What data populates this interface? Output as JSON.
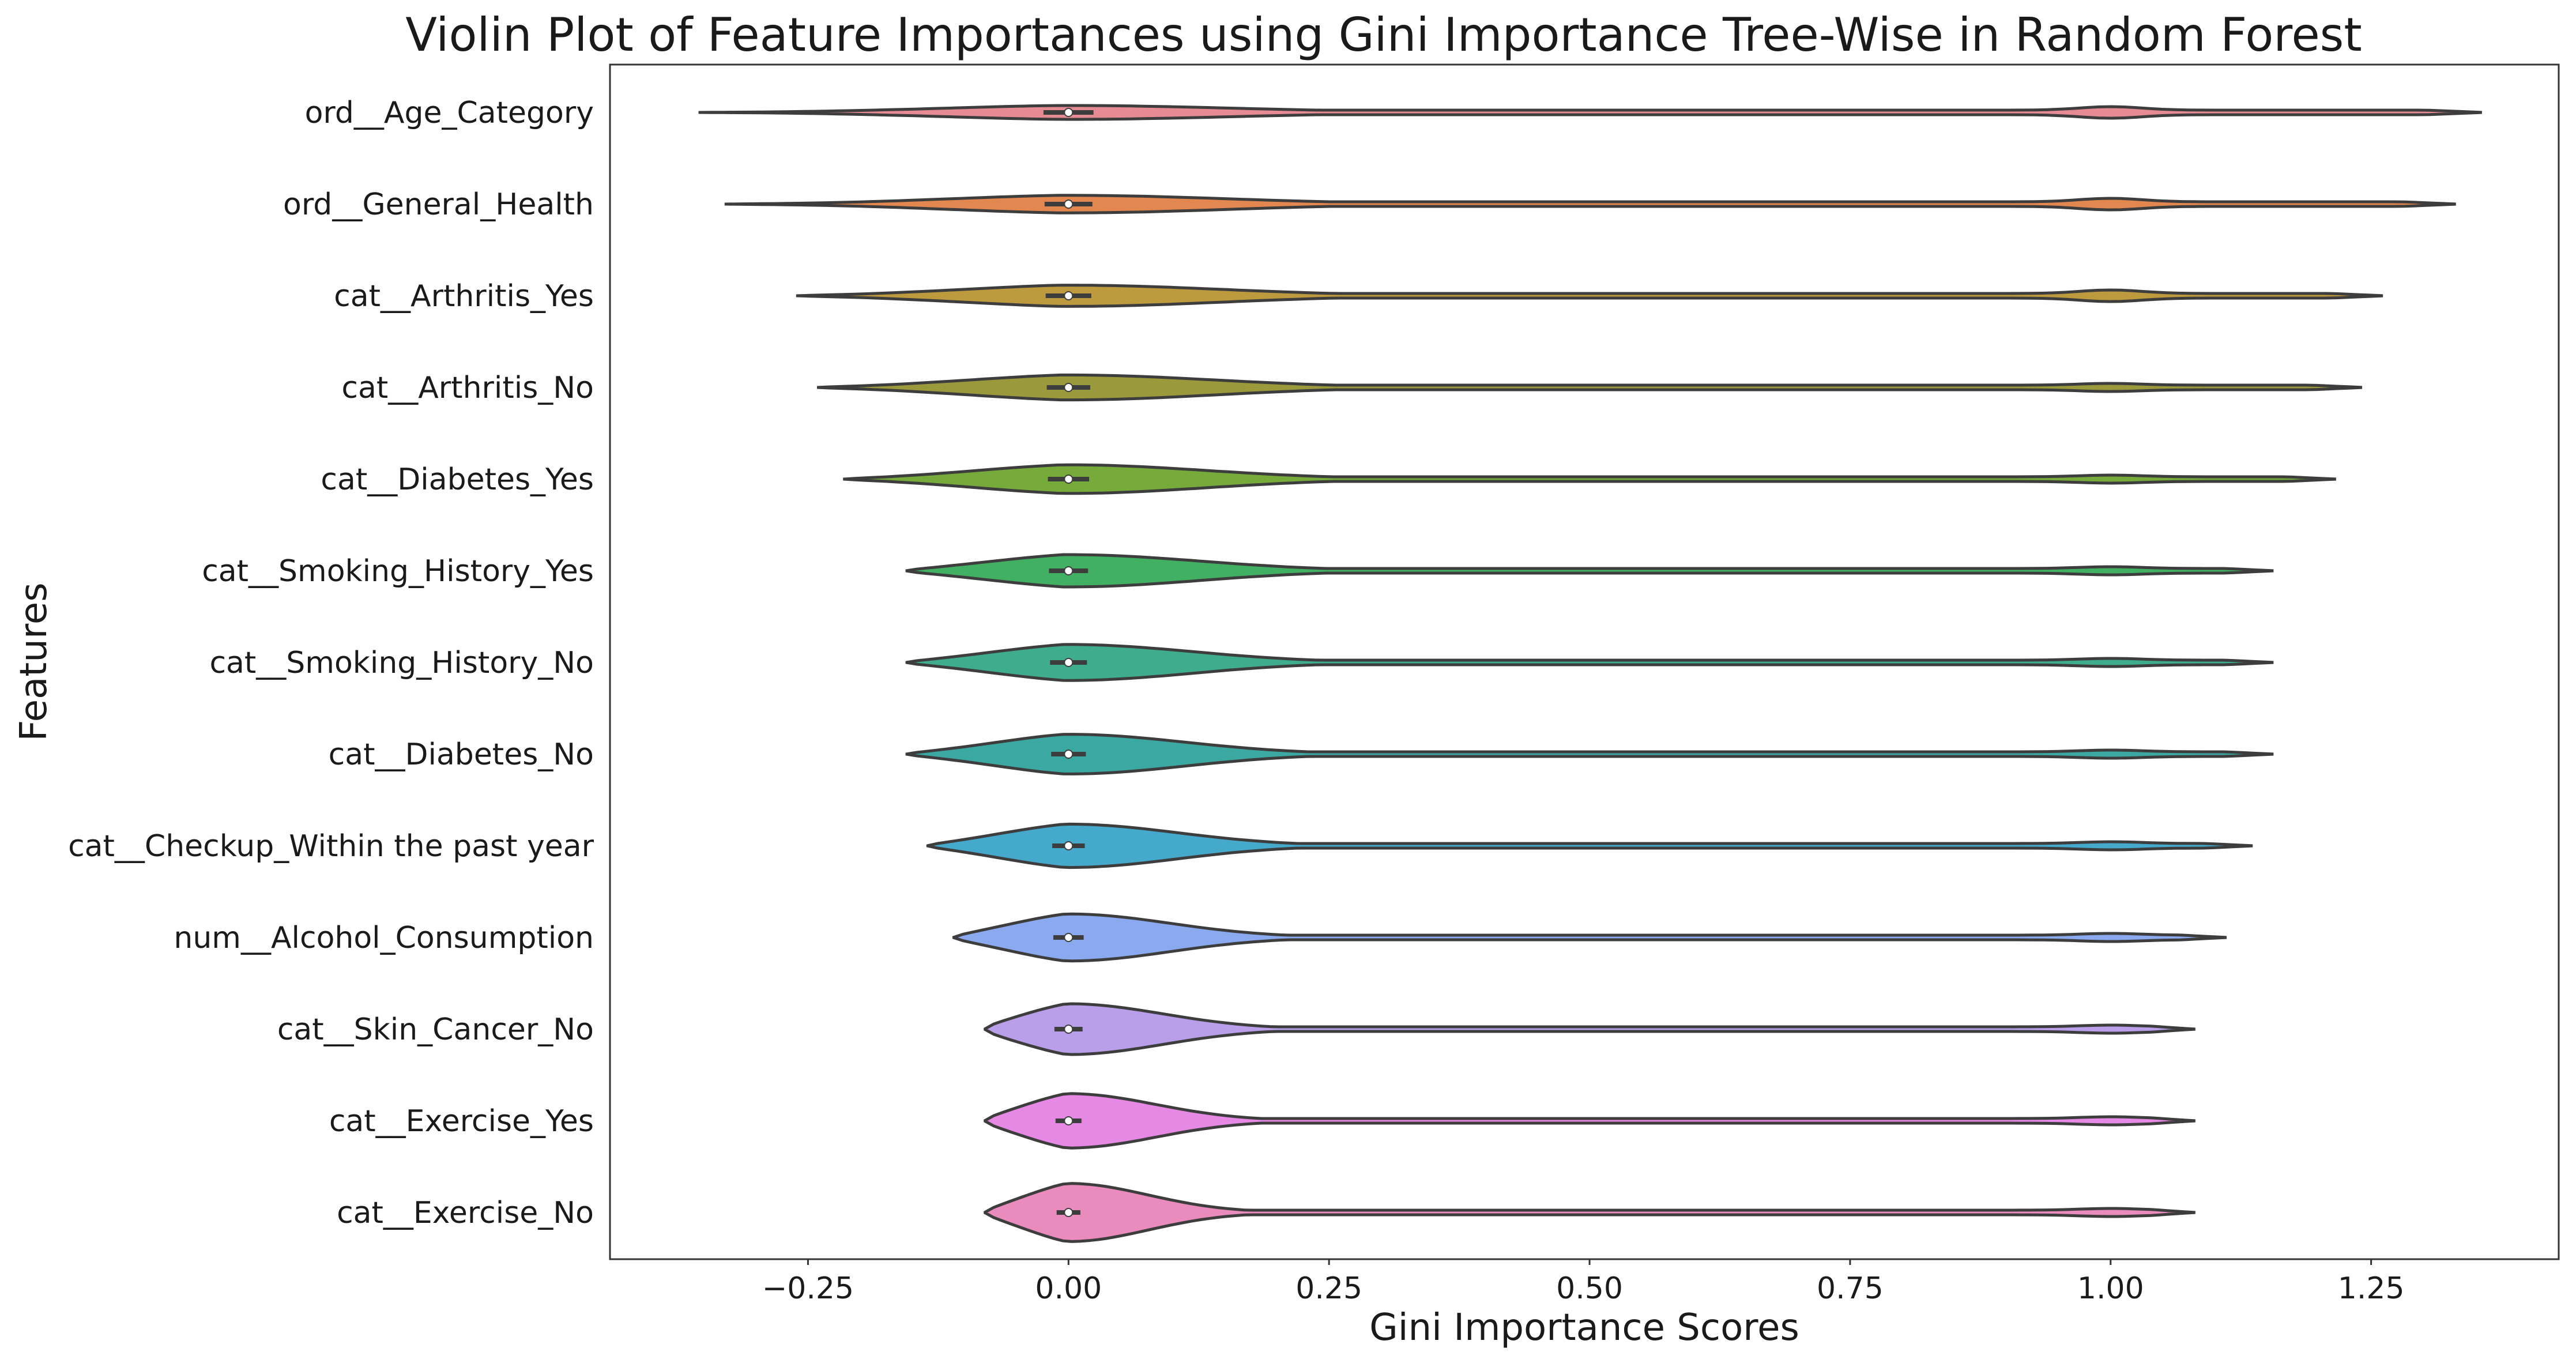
{
  "chart_data": {
    "type": "violin",
    "title": "Violin Plot of Feature Importances using Gini Importance Tree-Wise in Random Forest",
    "xlabel": "Gini Importance Scores",
    "ylabel": "Features",
    "xlim": [
      -0.44,
      1.43
    ],
    "xticks": [
      -0.25,
      0.0,
      0.25,
      0.5,
      0.75,
      1.0,
      1.25
    ],
    "xtick_labels": [
      "−0.25",
      "0.00",
      "0.25",
      "0.50",
      "0.75",
      "1.00",
      "1.25"
    ],
    "grid": false,
    "median_all": 0.0,
    "categories": [
      "ord__Age_Category",
      "ord__General_Health",
      "cat__Arthritis_Yes",
      "cat__Arthritis_No",
      "cat__Diabetes_Yes",
      "cat__Smoking_History_Yes",
      "cat__Smoking_History_No",
      "cat__Diabetes_No",
      "cat__Checkup_Within the past year",
      "num__Alcohol_Consumption",
      "cat__Skin_Cancer_No",
      "cat__Exercise_Yes",
      "cat__Exercise_No"
    ],
    "series": [
      {
        "min": -0.355,
        "max": 1.355,
        "median": 0.0,
        "color": "#e68a93"
      },
      {
        "min": -0.33,
        "max": 1.33,
        "median": 0.0,
        "color": "#e2874f"
      },
      {
        "min": -0.26,
        "max": 1.26,
        "median": 0.0,
        "color": "#bd9a3e"
      },
      {
        "min": -0.24,
        "max": 1.24,
        "median": 0.0,
        "color": "#9a9a3c"
      },
      {
        "min": -0.215,
        "max": 1.215,
        "median": 0.0,
        "color": "#76aa3a"
      },
      {
        "min": -0.155,
        "max": 1.155,
        "median": 0.0,
        "color": "#42b063"
      },
      {
        "min": -0.155,
        "max": 1.155,
        "median": 0.0,
        "color": "#40ac8e"
      },
      {
        "min": -0.155,
        "max": 1.155,
        "median": 0.0,
        "color": "#3ba8a1"
      },
      {
        "min": -0.135,
        "max": 1.135,
        "median": 0.0,
        "color": "#45a9cc"
      },
      {
        "min": -0.11,
        "max": 1.11,
        "median": 0.0,
        "color": "#8aa9ee"
      },
      {
        "min": -0.08,
        "max": 1.08,
        "median": 0.0,
        "color": "#b99ee9"
      },
      {
        "min": -0.08,
        "max": 1.08,
        "median": 0.0,
        "color": "#e689e4"
      },
      {
        "min": -0.08,
        "max": 1.08,
        "median": 0.0,
        "color": "#e98bbd"
      }
    ]
  }
}
